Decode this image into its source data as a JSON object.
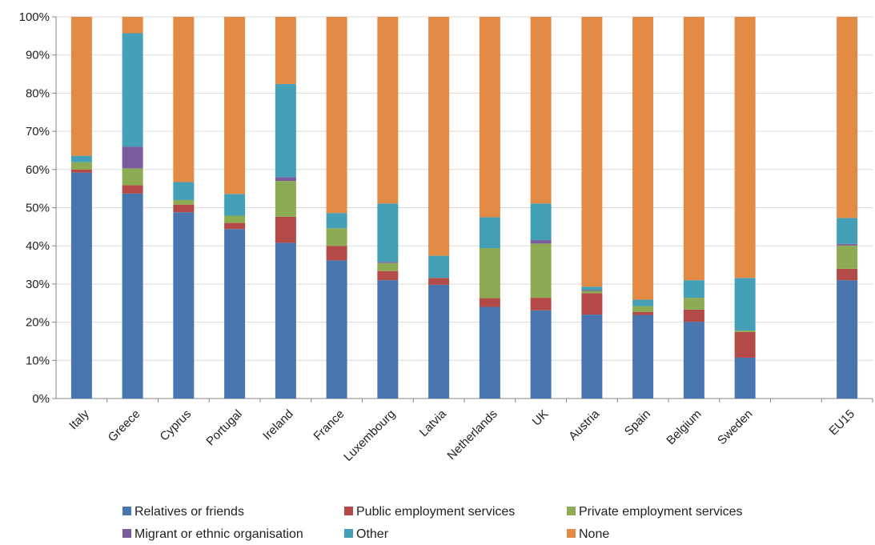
{
  "chart_data": {
    "type": "bar",
    "stacked": true,
    "percent_stacked": true,
    "categories": [
      "Italy",
      "Greece",
      "Cyprus",
      "Portugal",
      "Ireland",
      "France",
      "Luxembourg",
      "Latvia",
      "Netherlands",
      "UK",
      "Austria",
      "Spain",
      "Belgium",
      "Sweden",
      "",
      "EU15"
    ],
    "series": [
      {
        "name": "Relatives or friends",
        "color": "#4a76b0",
        "values": [
          59.2,
          53.7,
          48.8,
          44.4,
          40.8,
          36.2,
          31.0,
          29.8,
          24.0,
          23.1,
          22.0,
          21.9,
          20.1,
          10.7,
          null,
          31.0
        ]
      },
      {
        "name": "Public employment services",
        "color": "#b34a48",
        "values": [
          0.8,
          2.2,
          2.0,
          1.6,
          6.8,
          3.8,
          2.4,
          1.8,
          2.3,
          3.3,
          5.6,
          0.8,
          3.2,
          6.7,
          null,
          3.0
        ]
      },
      {
        "name": "Private employment services",
        "color": "#8cab52",
        "values": [
          1.9,
          4.4,
          1.2,
          1.9,
          9.4,
          4.6,
          2.1,
          0.0,
          13.1,
          14.2,
          0.6,
          1.5,
          3.1,
          0.4,
          null,
          6.1
        ]
      },
      {
        "name": "Migrant or ethnic organisation",
        "color": "#7a5b9c",
        "values": [
          0.0,
          5.7,
          0.0,
          0.0,
          1.0,
          0.0,
          0.3,
          0.0,
          0.0,
          0.9,
          0.2,
          0.0,
          0.0,
          0.0,
          null,
          0.4
        ]
      },
      {
        "name": "Other",
        "color": "#44a0b6",
        "values": [
          1.7,
          29.7,
          4.7,
          5.7,
          24.4,
          4.0,
          15.3,
          5.8,
          8.1,
          9.6,
          0.9,
          1.7,
          4.6,
          13.8,
          null,
          6.8
        ]
      },
      {
        "name": "None",
        "color": "#e38a45",
        "values": [
          36.4,
          4.3,
          43.3,
          46.4,
          17.6,
          51.4,
          48.9,
          62.6,
          52.5,
          48.9,
          70.7,
          74.1,
          69.0,
          68.4,
          null,
          52.7
        ]
      }
    ],
    "y_ticks": [
      "0%",
      "10%",
      "20%",
      "30%",
      "40%",
      "50%",
      "60%",
      "70%",
      "80%",
      "90%",
      "100%"
    ],
    "ylim": [
      0,
      100
    ],
    "grid": true,
    "legend_position": "bottom",
    "title": "",
    "xlabel": "",
    "ylabel": ""
  }
}
